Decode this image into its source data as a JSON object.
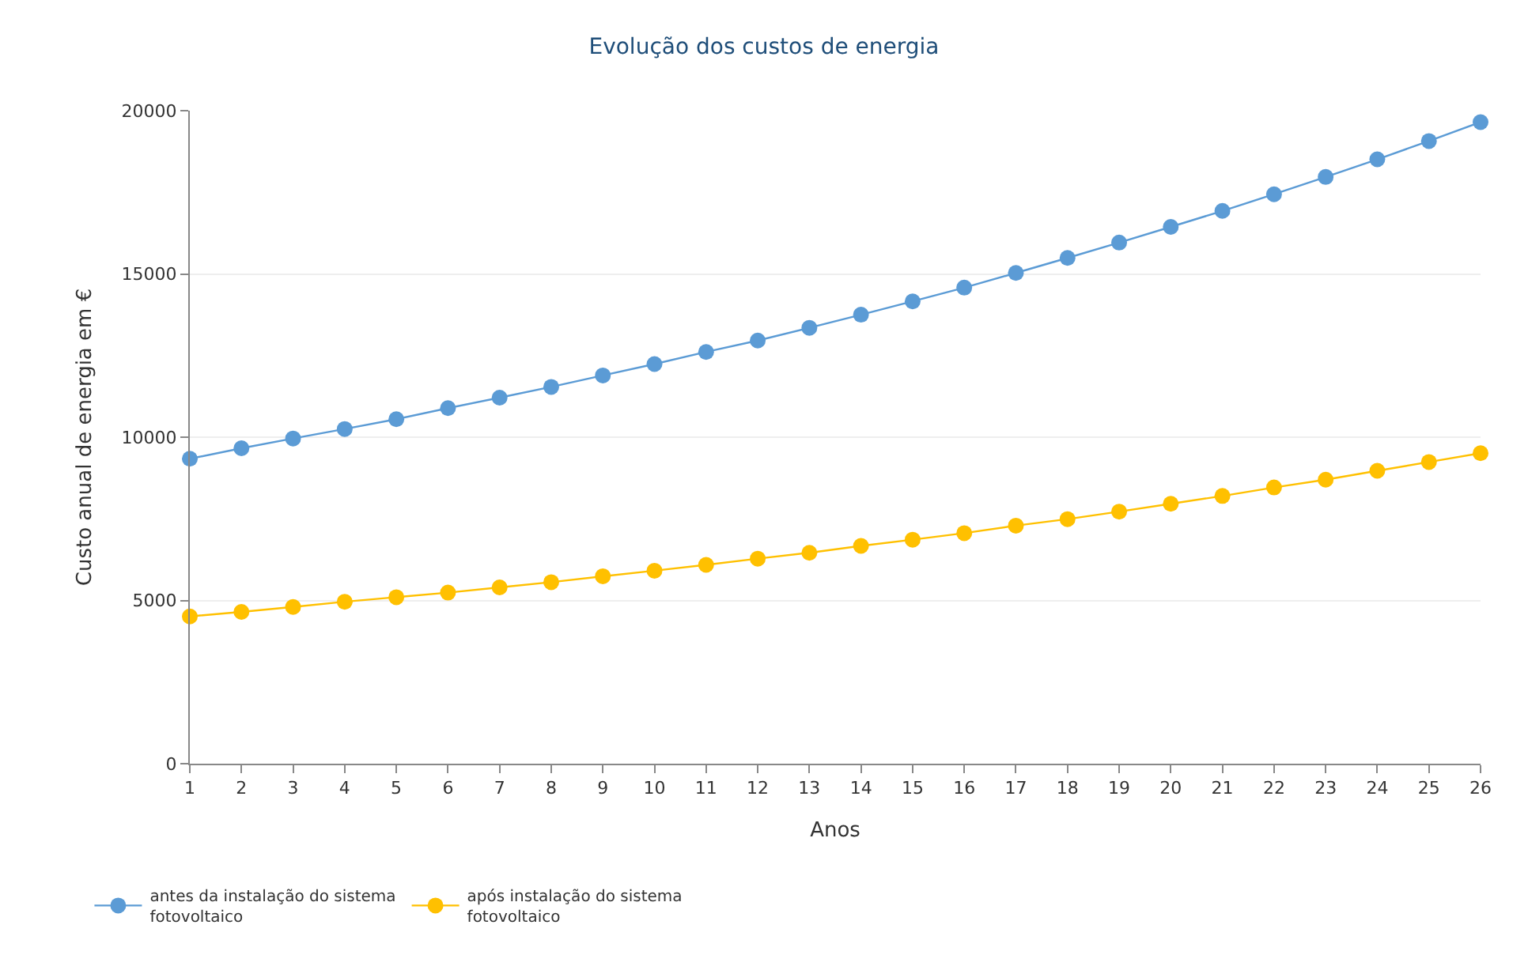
{
  "chart_data": {
    "type": "line",
    "title": "Evolução dos custos de energia",
    "xlabel": "Anos",
    "ylabel": "Custo anual de energia em €",
    "x": [
      1,
      2,
      3,
      4,
      5,
      6,
      7,
      8,
      9,
      10,
      11,
      12,
      13,
      14,
      15,
      16,
      17,
      18,
      19,
      20,
      21,
      22,
      23,
      24,
      25,
      26
    ],
    "xlim": [
      1,
      26
    ],
    "xticks": [
      1,
      2,
      3,
      4,
      5,
      6,
      7,
      8,
      9,
      10,
      11,
      12,
      13,
      14,
      15,
      16,
      17,
      18,
      19,
      20,
      21,
      22,
      23,
      24,
      25,
      26
    ],
    "ylim": [
      0,
      20000
    ],
    "yticks": [
      0,
      5000,
      10000,
      15000,
      20000
    ],
    "grid": "y",
    "legend": "bottom left",
    "marker": "circle",
    "line_style": "solid",
    "series": [
      {
        "name": "antes da instalação do sistema fotovoltaico",
        "color": "#5b9bd5",
        "values": [
          9340,
          9660,
          9960,
          10250,
          10550,
          10890,
          11210,
          11540,
          11890,
          12240,
          12610,
          12960,
          13350,
          13750,
          14160,
          14580,
          15030,
          15490,
          15960,
          16440,
          16930,
          17440,
          17970,
          18510,
          19070,
          19650
        ]
      },
      {
        "name": "após instalação do sistema fotovoltaico",
        "color": "#ffc000",
        "values": [
          4510,
          4650,
          4800,
          4960,
          5100,
          5240,
          5400,
          5560,
          5740,
          5910,
          6090,
          6280,
          6460,
          6670,
          6860,
          7060,
          7290,
          7490,
          7720,
          7960,
          8200,
          8460,
          8700,
          8970,
          9240,
          9510
        ]
      }
    ]
  }
}
